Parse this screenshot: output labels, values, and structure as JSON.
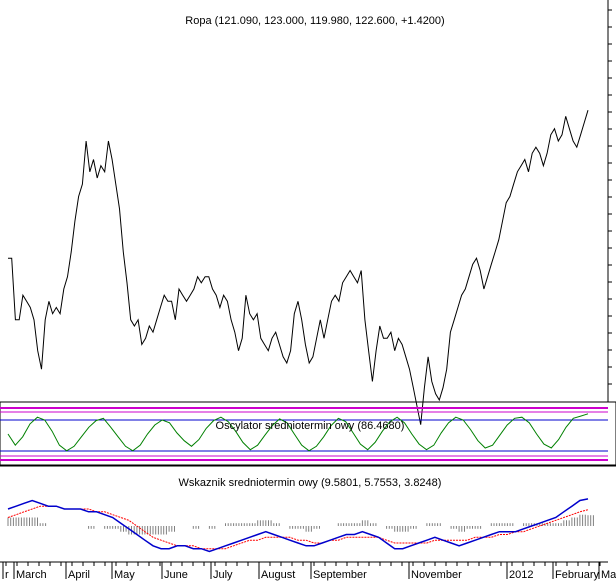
{
  "chart_data": [
    {
      "type": "line",
      "title": "Ropa (121.090, 123.000, 119.980, 122.600, +1.4200)",
      "series": [
        {
          "color": "#000000",
          "values": [
            63,
            63,
            53,
            53,
            57,
            56,
            55,
            53,
            48,
            45,
            53,
            56,
            54,
            55,
            54,
            58,
            60,
            64,
            69,
            73,
            75,
            82,
            77,
            79,
            76,
            78,
            77,
            82,
            79,
            75,
            71,
            64,
            59,
            53,
            52,
            53,
            49,
            50,
            52,
            51,
            53,
            55,
            57,
            56,
            56,
            53,
            58,
            57,
            56,
            57,
            58,
            60,
            59,
            60,
            60,
            58,
            57,
            55,
            57,
            56,
            53,
            51,
            48,
            50,
            57,
            54,
            53,
            54,
            50,
            49,
            48,
            50,
            51,
            49,
            47,
            46,
            48,
            54,
            56,
            53,
            49,
            46,
            47,
            50,
            53,
            50,
            53,
            56,
            57,
            56,
            59,
            60,
            61,
            60,
            59,
            61,
            53,
            48,
            43,
            48,
            52,
            50,
            50,
            51,
            48,
            50,
            49,
            47,
            45,
            42,
            39,
            36,
            42,
            47,
            43,
            41,
            40,
            42,
            45,
            51,
            53,
            55,
            57,
            58,
            60,
            62,
            63,
            61,
            58,
            60,
            62,
            64,
            66,
            69,
            72,
            73,
            75,
            77,
            78,
            79,
            77,
            80,
            81,
            80,
            78,
            80,
            83,
            84,
            82,
            83,
            86,
            84,
            82,
            81,
            83,
            85,
            87
          ]
        }
      ]
    },
    {
      "type": "line",
      "title": "Oscylator sredniotermin owy (86.4680)",
      "series": [
        {
          "color": "#008000",
          "values": [
            50,
            30,
            45,
            68,
            80,
            75,
            55,
            30,
            20,
            28,
            45,
            62,
            74,
            78,
            62,
            45,
            28,
            20,
            30,
            50,
            66,
            75,
            70,
            52,
            38,
            28,
            40,
            60,
            74,
            80,
            72,
            55,
            35,
            22,
            30,
            48,
            65,
            77,
            70,
            50,
            30,
            20,
            28,
            45,
            65,
            78,
            72,
            52,
            32,
            22,
            35,
            55,
            72,
            80,
            70,
            50,
            32,
            22,
            30,
            52,
            70,
            80,
            75,
            58,
            38,
            25,
            30,
            48,
            66,
            78,
            80,
            70,
            50,
            32,
            25,
            40,
            62,
            78,
            82,
            86
          ]
        }
      ]
    },
    {
      "type": "line",
      "title": "Wskaznik sredniotermin owy (9.5801, 5.7553, 3.8248)",
      "series": [
        {
          "color": "#0000cc",
          "values": [
            6,
            7,
            8,
            9,
            8,
            7,
            7,
            6,
            6,
            6,
            5,
            5,
            4,
            3,
            1,
            -1,
            -3,
            -5,
            -7,
            -8,
            -8,
            -7,
            -7,
            -8,
            -8,
            -9,
            -8,
            -7,
            -6,
            -5,
            -4,
            -3,
            -2,
            -3,
            -4,
            -5,
            -6,
            -7,
            -7,
            -6,
            -5,
            -4,
            -3,
            -3,
            -2,
            -3,
            -4,
            -6,
            -8,
            -8,
            -7,
            -6,
            -5,
            -4,
            -5,
            -6,
            -7,
            -6,
            -5,
            -4,
            -3,
            -2,
            -2,
            -2,
            -1,
            0,
            1,
            2,
            3,
            5,
            7,
            9,
            9.58
          ]
        },
        {
          "color": "#ff0000",
          "values": [
            3,
            4,
            5,
            6,
            7,
            7,
            7,
            6,
            6,
            6,
            6,
            5,
            5,
            4,
            3,
            2,
            0,
            -2,
            -4,
            -5,
            -6,
            -7,
            -7,
            -7,
            -8,
            -8,
            -8,
            -8,
            -7,
            -6,
            -5,
            -5,
            -4,
            -4,
            -4,
            -4,
            -5,
            -5,
            -6,
            -6,
            -5,
            -5,
            -4,
            -4,
            -4,
            -4,
            -4,
            -5,
            -6,
            -6,
            -6,
            -6,
            -6,
            -5,
            -5,
            -5,
            -5,
            -5,
            -4,
            -4,
            -4,
            -3,
            -3,
            -2,
            -2,
            -1,
            0,
            1,
            2,
            3,
            4,
            5,
            5.76
          ]
        },
        {
          "color": "#808080",
          "values": [
            3,
            3,
            3,
            3,
            1,
            0,
            0,
            0,
            0,
            0,
            -1,
            0,
            -1,
            -1,
            -2,
            -3,
            -3,
            -3,
            -3,
            -3,
            -2,
            0,
            0,
            -1,
            0,
            -1,
            0,
            1,
            1,
            1,
            1,
            2,
            2,
            1,
            0,
            -1,
            -1,
            -2,
            -1,
            0,
            0,
            1,
            1,
            1,
            2,
            1,
            0,
            -1,
            -2,
            -2,
            -1,
            0,
            1,
            1,
            0,
            -1,
            -2,
            -1,
            -1,
            0,
            1,
            1,
            1,
            0,
            1,
            1,
            1,
            1,
            1,
            2,
            3,
            4,
            3.82
          ]
        }
      ]
    }
  ],
  "x_tick_labels": [
    "r",
    "March",
    "April",
    "May",
    "June",
    "July",
    "August",
    "September",
    "November",
    "2012",
    "February",
    "Ma"
  ]
}
